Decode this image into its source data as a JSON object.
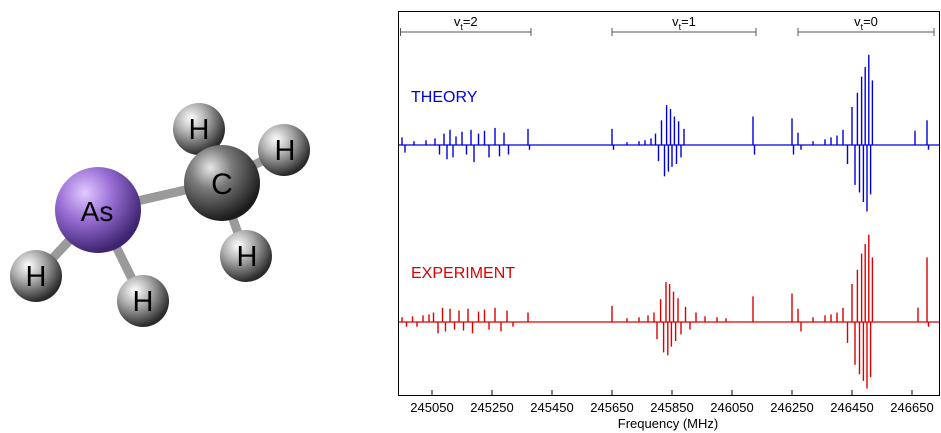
{
  "molecule": {
    "atoms": [
      {
        "symbol": "As",
        "color": "#9a6fd6"
      },
      {
        "symbol": "C",
        "color": "#6e6e6e"
      },
      {
        "symbol": "H",
        "color": "#8a8a8a"
      },
      {
        "symbol": "H",
        "color": "#8a8a8a"
      },
      {
        "symbol": "H",
        "color": "#8a8a8a"
      },
      {
        "symbol": "H",
        "color": "#8a8a8a"
      },
      {
        "symbol": "H",
        "color": "#8a8a8a"
      }
    ]
  },
  "chart_data": {
    "type": "line",
    "xlabel": "Frequency (MHz)",
    "xlim": [
      244940,
      246740
    ],
    "x_ticks": [
      245050,
      245250,
      245450,
      245650,
      245850,
      246050,
      246250,
      246450,
      246650
    ],
    "grid": false,
    "band_labels": [
      {
        "label": "v",
        "sub": "t",
        "suffix": "=2",
        "range": [
          244945,
          245380
        ]
      },
      {
        "label": "v",
        "sub": "t",
        "suffix": "=1",
        "range": [
          245650,
          246130
        ]
      },
      {
        "label": "v",
        "sub": "t",
        "suffix": "=0",
        "range": [
          246270,
          246740
        ]
      }
    ],
    "series": [
      {
        "name": "THEORY",
        "color": "#0000dd",
        "lines": [
          [
            244950,
            0.08
          ],
          [
            244960,
            -0.08
          ],
          [
            244990,
            0.04
          ],
          [
            245030,
            0.05
          ],
          [
            245060,
            0.07
          ],
          [
            245075,
            -0.1
          ],
          [
            245090,
            0.12
          ],
          [
            245100,
            -0.15
          ],
          [
            245110,
            0.16
          ],
          [
            245120,
            -0.13
          ],
          [
            245130,
            0.09
          ],
          [
            245150,
            0.14
          ],
          [
            245165,
            -0.1
          ],
          [
            245180,
            0.16
          ],
          [
            245190,
            -0.18
          ],
          [
            245205,
            0.12
          ],
          [
            245225,
            0.15
          ],
          [
            245240,
            -0.13
          ],
          [
            245260,
            0.18
          ],
          [
            245275,
            -0.12
          ],
          [
            245290,
            0.13
          ],
          [
            245305,
            -0.1
          ],
          [
            245370,
            0.17
          ],
          [
            245375,
            -0.05
          ],
          [
            245650,
            0.17
          ],
          [
            245655,
            -0.05
          ],
          [
            245700,
            0.03
          ],
          [
            245740,
            0.04
          ],
          [
            245760,
            0.05
          ],
          [
            245780,
            0.07
          ],
          [
            245795,
            0.12
          ],
          [
            245805,
            -0.17
          ],
          [
            245815,
            0.26
          ],
          [
            245825,
            -0.33
          ],
          [
            245832,
            0.42
          ],
          [
            245838,
            -0.28
          ],
          [
            245845,
            0.38
          ],
          [
            245850,
            -0.23
          ],
          [
            245858,
            0.3
          ],
          [
            245865,
            -0.2
          ],
          [
            245872,
            0.25
          ],
          [
            245880,
            -0.13
          ],
          [
            245890,
            0.17
          ],
          [
            246120,
            0.3
          ],
          [
            246125,
            -0.1
          ],
          [
            246250,
            0.28
          ],
          [
            246255,
            -0.1
          ],
          [
            246270,
            0.13
          ],
          [
            246280,
            -0.05
          ],
          [
            246320,
            0.04
          ],
          [
            246360,
            0.06
          ],
          [
            246380,
            0.08
          ],
          [
            246400,
            0.1
          ],
          [
            246420,
            0.16
          ],
          [
            246435,
            -0.2
          ],
          [
            246450,
            0.4
          ],
          [
            246460,
            -0.42
          ],
          [
            246468,
            0.55
          ],
          [
            246475,
            -0.5
          ],
          [
            246482,
            0.72
          ],
          [
            246488,
            -0.6
          ],
          [
            246494,
            0.82
          ],
          [
            246500,
            -0.7
          ],
          [
            246506,
            0.95
          ],
          [
            246512,
            -0.52
          ],
          [
            246518,
            0.68
          ],
          [
            246660,
            0.15
          ],
          [
            246700,
            0.26
          ],
          [
            246705,
            -0.05
          ]
        ]
      },
      {
        "name": "EXPERIMENT",
        "color": "#dd0000",
        "lines": [
          [
            244950,
            0.05
          ],
          [
            244965,
            -0.05
          ],
          [
            244985,
            0.06
          ],
          [
            245000,
            -0.05
          ],
          [
            245020,
            0.07
          ],
          [
            245040,
            0.08
          ],
          [
            245055,
            0.1
          ],
          [
            245070,
            -0.12
          ],
          [
            245085,
            0.15
          ],
          [
            245095,
            -0.1
          ],
          [
            245110,
            0.14
          ],
          [
            245125,
            -0.08
          ],
          [
            245140,
            0.12
          ],
          [
            245155,
            -0.09
          ],
          [
            245170,
            0.14
          ],
          [
            245185,
            -0.12
          ],
          [
            245205,
            0.11
          ],
          [
            245225,
            0.13
          ],
          [
            245240,
            -0.08
          ],
          [
            245260,
            0.15
          ],
          [
            245280,
            -0.1
          ],
          [
            245300,
            0.12
          ],
          [
            245320,
            -0.05
          ],
          [
            245370,
            0.1
          ],
          [
            245650,
            0.17
          ],
          [
            245700,
            0.04
          ],
          [
            245740,
            0.05
          ],
          [
            245770,
            0.07
          ],
          [
            245790,
            0.1
          ],
          [
            245800,
            -0.18
          ],
          [
            245812,
            0.24
          ],
          [
            245822,
            -0.32
          ],
          [
            245830,
            0.42
          ],
          [
            245836,
            -0.35
          ],
          [
            245842,
            0.4
          ],
          [
            245848,
            -0.26
          ],
          [
            245855,
            0.32
          ],
          [
            245862,
            -0.2
          ],
          [
            245870,
            0.25
          ],
          [
            245880,
            -0.13
          ],
          [
            245895,
            0.16
          ],
          [
            245910,
            -0.08
          ],
          [
            245930,
            0.1
          ],
          [
            245960,
            0.06
          ],
          [
            246000,
            0.05
          ],
          [
            246030,
            0.04
          ],
          [
            246120,
            0.27
          ],
          [
            246250,
            0.3
          ],
          [
            246270,
            0.14
          ],
          [
            246280,
            -0.1
          ],
          [
            246320,
            0.05
          ],
          [
            246360,
            0.07
          ],
          [
            246380,
            0.08
          ],
          [
            246400,
            0.1
          ],
          [
            246420,
            0.15
          ],
          [
            246435,
            -0.22
          ],
          [
            246450,
            0.4
          ],
          [
            246460,
            -0.45
          ],
          [
            246468,
            0.55
          ],
          [
            246475,
            -0.55
          ],
          [
            246482,
            0.72
          ],
          [
            246488,
            -0.62
          ],
          [
            246494,
            0.82
          ],
          [
            246500,
            -0.7
          ],
          [
            246506,
            0.92
          ],
          [
            246512,
            -0.58
          ],
          [
            246518,
            0.68
          ],
          [
            246670,
            0.15
          ],
          [
            246700,
            0.68
          ],
          [
            246705,
            -0.05
          ]
        ]
      }
    ]
  }
}
